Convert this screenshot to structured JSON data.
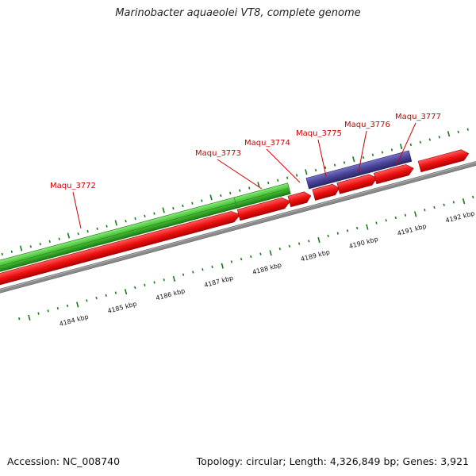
{
  "title": "Marinobacter aquaeolei VT8, complete genome",
  "footer": {
    "accession": "Accession: NC_008740",
    "summary": "Topology: circular; Length: 4,326,849 bp; Genes: 3,921"
  },
  "colors": {
    "forward_cds": "#ee1111",
    "reverse_cds": "#44bb33",
    "purple_gene": "#4a4499",
    "backbone": "#888888",
    "tick": "#1a7a1a",
    "label": "#cc0000"
  },
  "genes": [
    {
      "label": "Maqu_3772"
    },
    {
      "label": "Maqu_3773"
    },
    {
      "label": "Maqu_3774"
    },
    {
      "label": "Maqu_3775"
    },
    {
      "label": "Maqu_3776"
    },
    {
      "label": "Maqu_3777"
    }
  ],
  "kbp_labels": [
    "4184 kbp",
    "4185 kbp",
    "4186 kbp",
    "4187 kbp",
    "4188 kbp",
    "4189 kbp",
    "4190 kbp",
    "4191 kbp",
    "4192 kbp"
  ]
}
